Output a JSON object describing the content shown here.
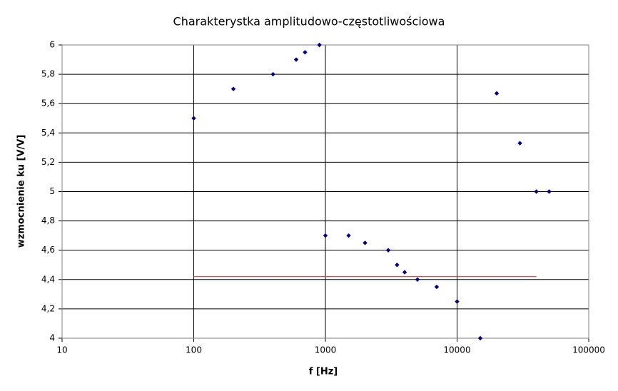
{
  "chart_data": {
    "type": "scatter",
    "title": "Charakterystka amplitudowo-częstotliwościowa",
    "x_label": "f [Hz]",
    "y_label": "wzmocnienie ku [V/V]",
    "x_scale": "log",
    "grid": true,
    "xlim": [
      10,
      100000
    ],
    "xticks": [
      10,
      100,
      1000,
      10000,
      100000
    ],
    "ylim": [
      4,
      6
    ],
    "yticks": [
      4,
      {
        "value": 4.2,
        "label": "4,2"
      },
      {
        "value": 4.4,
        "label": "4,4"
      },
      {
        "value": 4.6,
        "label": "4,6"
      },
      {
        "value": 4.8,
        "label": "4,8"
      },
      5,
      {
        "value": 5.2,
        "label": "5,2"
      },
      {
        "value": 5.4,
        "label": "5,4"
      },
      {
        "value": 5.6,
        "label": "5,6"
      },
      {
        "value": 5.8,
        "label": "5,8"
      },
      6
    ],
    "series": [
      {
        "mode": "markers",
        "color": "#000080",
        "x": [
          100,
          200,
          400,
          600,
          700,
          900,
          1000,
          1500,
          2000,
          3000,
          3500,
          4000,
          5000,
          7000,
          10000,
          15000,
          20000,
          30000,
          40000,
          50000
        ],
        "values": [
          5.5,
          5.7,
          5.8,
          5.9,
          5.95,
          6.0,
          4.7,
          4.7,
          4.65,
          4.6,
          4.5,
          4.45,
          4.4,
          4.35,
          4.25,
          4.0,
          5.67,
          5.33,
          5.0,
          5.0
        ]
      },
      {
        "mode": "line",
        "color": "#e03030",
        "x": [
          100,
          40000
        ],
        "values": [
          4.42,
          4.42
        ]
      }
    ]
  }
}
